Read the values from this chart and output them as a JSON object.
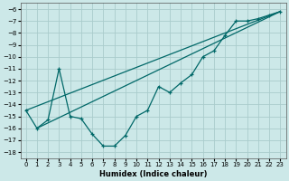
{
  "xlabel": "Humidex (Indice chaleur)",
  "bg_color": "#cce8e8",
  "grid_color": "#aacccc",
  "line_color": "#006868",
  "xlim": [
    -0.5,
    23.5
  ],
  "ylim": [
    -18.5,
    -5.5
  ],
  "yticks": [
    -6,
    -7,
    -8,
    -9,
    -10,
    -11,
    -12,
    -13,
    -14,
    -15,
    -16,
    -17,
    -18
  ],
  "xticks": [
    0,
    1,
    2,
    3,
    4,
    5,
    6,
    7,
    8,
    9,
    10,
    11,
    12,
    13,
    14,
    15,
    16,
    17,
    18,
    19,
    20,
    21,
    22,
    23
  ],
  "main_x": [
    0,
    1,
    2,
    3,
    4,
    5,
    6,
    7,
    8,
    9,
    10,
    11,
    12,
    13,
    14,
    15,
    16,
    17,
    18,
    19,
    20,
    21,
    22,
    23
  ],
  "main_y": [
    -14.5,
    -16.0,
    -15.3,
    -11.0,
    -15.0,
    -15.2,
    -16.5,
    -17.5,
    -17.5,
    -16.6,
    -15.0,
    -14.5,
    -12.5,
    -13.0,
    -12.2,
    -11.5,
    -10.0,
    -9.5,
    -8.2,
    -7.0,
    -7.0,
    -6.8,
    -6.5,
    -6.2
  ],
  "trend1_x": [
    0,
    23
  ],
  "trend1_y": [
    -14.5,
    -6.2
  ],
  "trend2_x": [
    1,
    23
  ],
  "trend2_y": [
    -16.0,
    -6.2
  ]
}
